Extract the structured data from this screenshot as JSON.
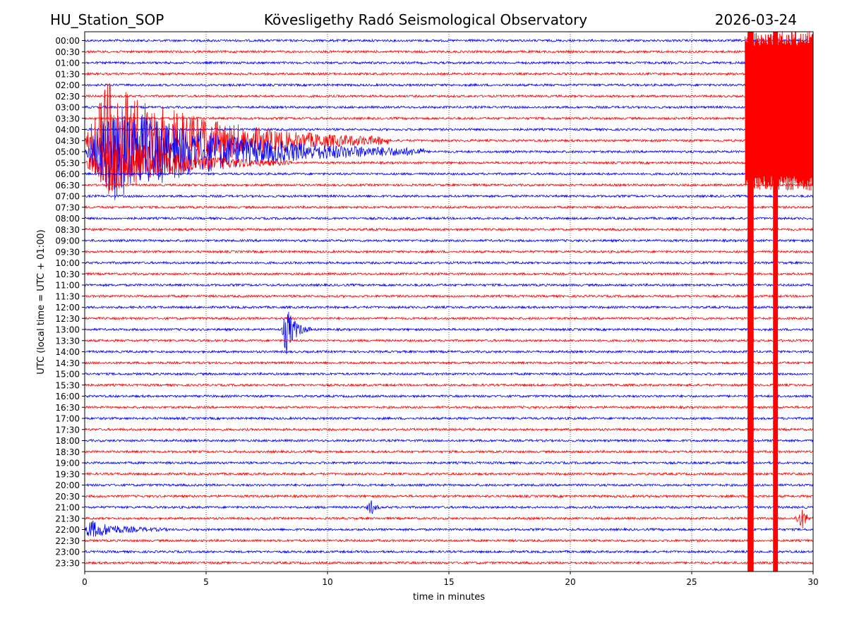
{
  "header": {
    "station": "HU_Station_SOP",
    "observatory": "Kövesligethy Radó Seismological Observatory",
    "date": "2026-03-24"
  },
  "chart_data": {
    "type": "line",
    "subtype": "helicorder",
    "xlabel": "time in minutes",
    "ylabel": "UTC (local time = UTC + 01:00)",
    "xlim": [
      0,
      30
    ],
    "xticks": [
      0,
      5,
      10,
      15,
      20,
      25,
      30
    ],
    "grid": "vertical dotted at each x tick",
    "row_colors": [
      "#0000ff",
      "#ff0000"
    ],
    "rows": [
      "00:00",
      "00:30",
      "01:00",
      "01:30",
      "02:00",
      "02:30",
      "03:00",
      "03:30",
      "04:00",
      "04:30",
      "05:00",
      "05:30",
      "06:00",
      "06:30",
      "07:00",
      "07:30",
      "08:00",
      "08:30",
      "09:00",
      "09:30",
      "10:00",
      "10:30",
      "11:00",
      "11:30",
      "12:00",
      "12:30",
      "13:00",
      "13:30",
      "14:00",
      "14:30",
      "15:00",
      "15:30",
      "16:00",
      "16:30",
      "17:00",
      "17:30",
      "18:00",
      "18:30",
      "19:00",
      "19:30",
      "20:00",
      "20:30",
      "21:00",
      "21:30",
      "22:00",
      "22:30",
      "23:00",
      "23:30"
    ],
    "events": [
      {
        "row": "04:30",
        "start_min": 0.0,
        "end_min": 12.5,
        "peak_min": 1.0,
        "amplitude": 6.0
      },
      {
        "row": "05:00",
        "start_min": 0.0,
        "end_min": 14.0,
        "peak_min": 1.0,
        "amplitude": 5.0
      },
      {
        "row": "05:30",
        "start_min": 0.0,
        "end_min": 8.5,
        "peak_min": 1.0,
        "amplitude": 3.0
      },
      {
        "row": "13:00",
        "start_min": 8.1,
        "end_min": 9.3,
        "peak_min": 8.3,
        "amplitude": 2.5
      },
      {
        "row": "22:00",
        "start_min": 0.0,
        "end_min": 3.5,
        "peak_min": 0.2,
        "amplitude": 0.9
      },
      {
        "row": "21:00",
        "start_min": 11.6,
        "end_min": 12.2,
        "peak_min": 11.8,
        "amplitude": 0.8
      },
      {
        "row": "21:30",
        "start_min": 29.2,
        "end_min": 30.0,
        "peak_min": 29.6,
        "amplitude": 1.0
      }
    ],
    "clipped_bands": [
      {
        "from_row": "00:00",
        "to_row": "23:30",
        "start_min": 27.3,
        "end_min": 27.55
      },
      {
        "from_row": "00:00",
        "to_row": "23:30",
        "start_min": 28.35,
        "end_min": 28.55
      },
      {
        "from_row": "00:00",
        "to_row": "06:30",
        "start_min": 27.2,
        "end_min": 30.0
      }
    ]
  }
}
